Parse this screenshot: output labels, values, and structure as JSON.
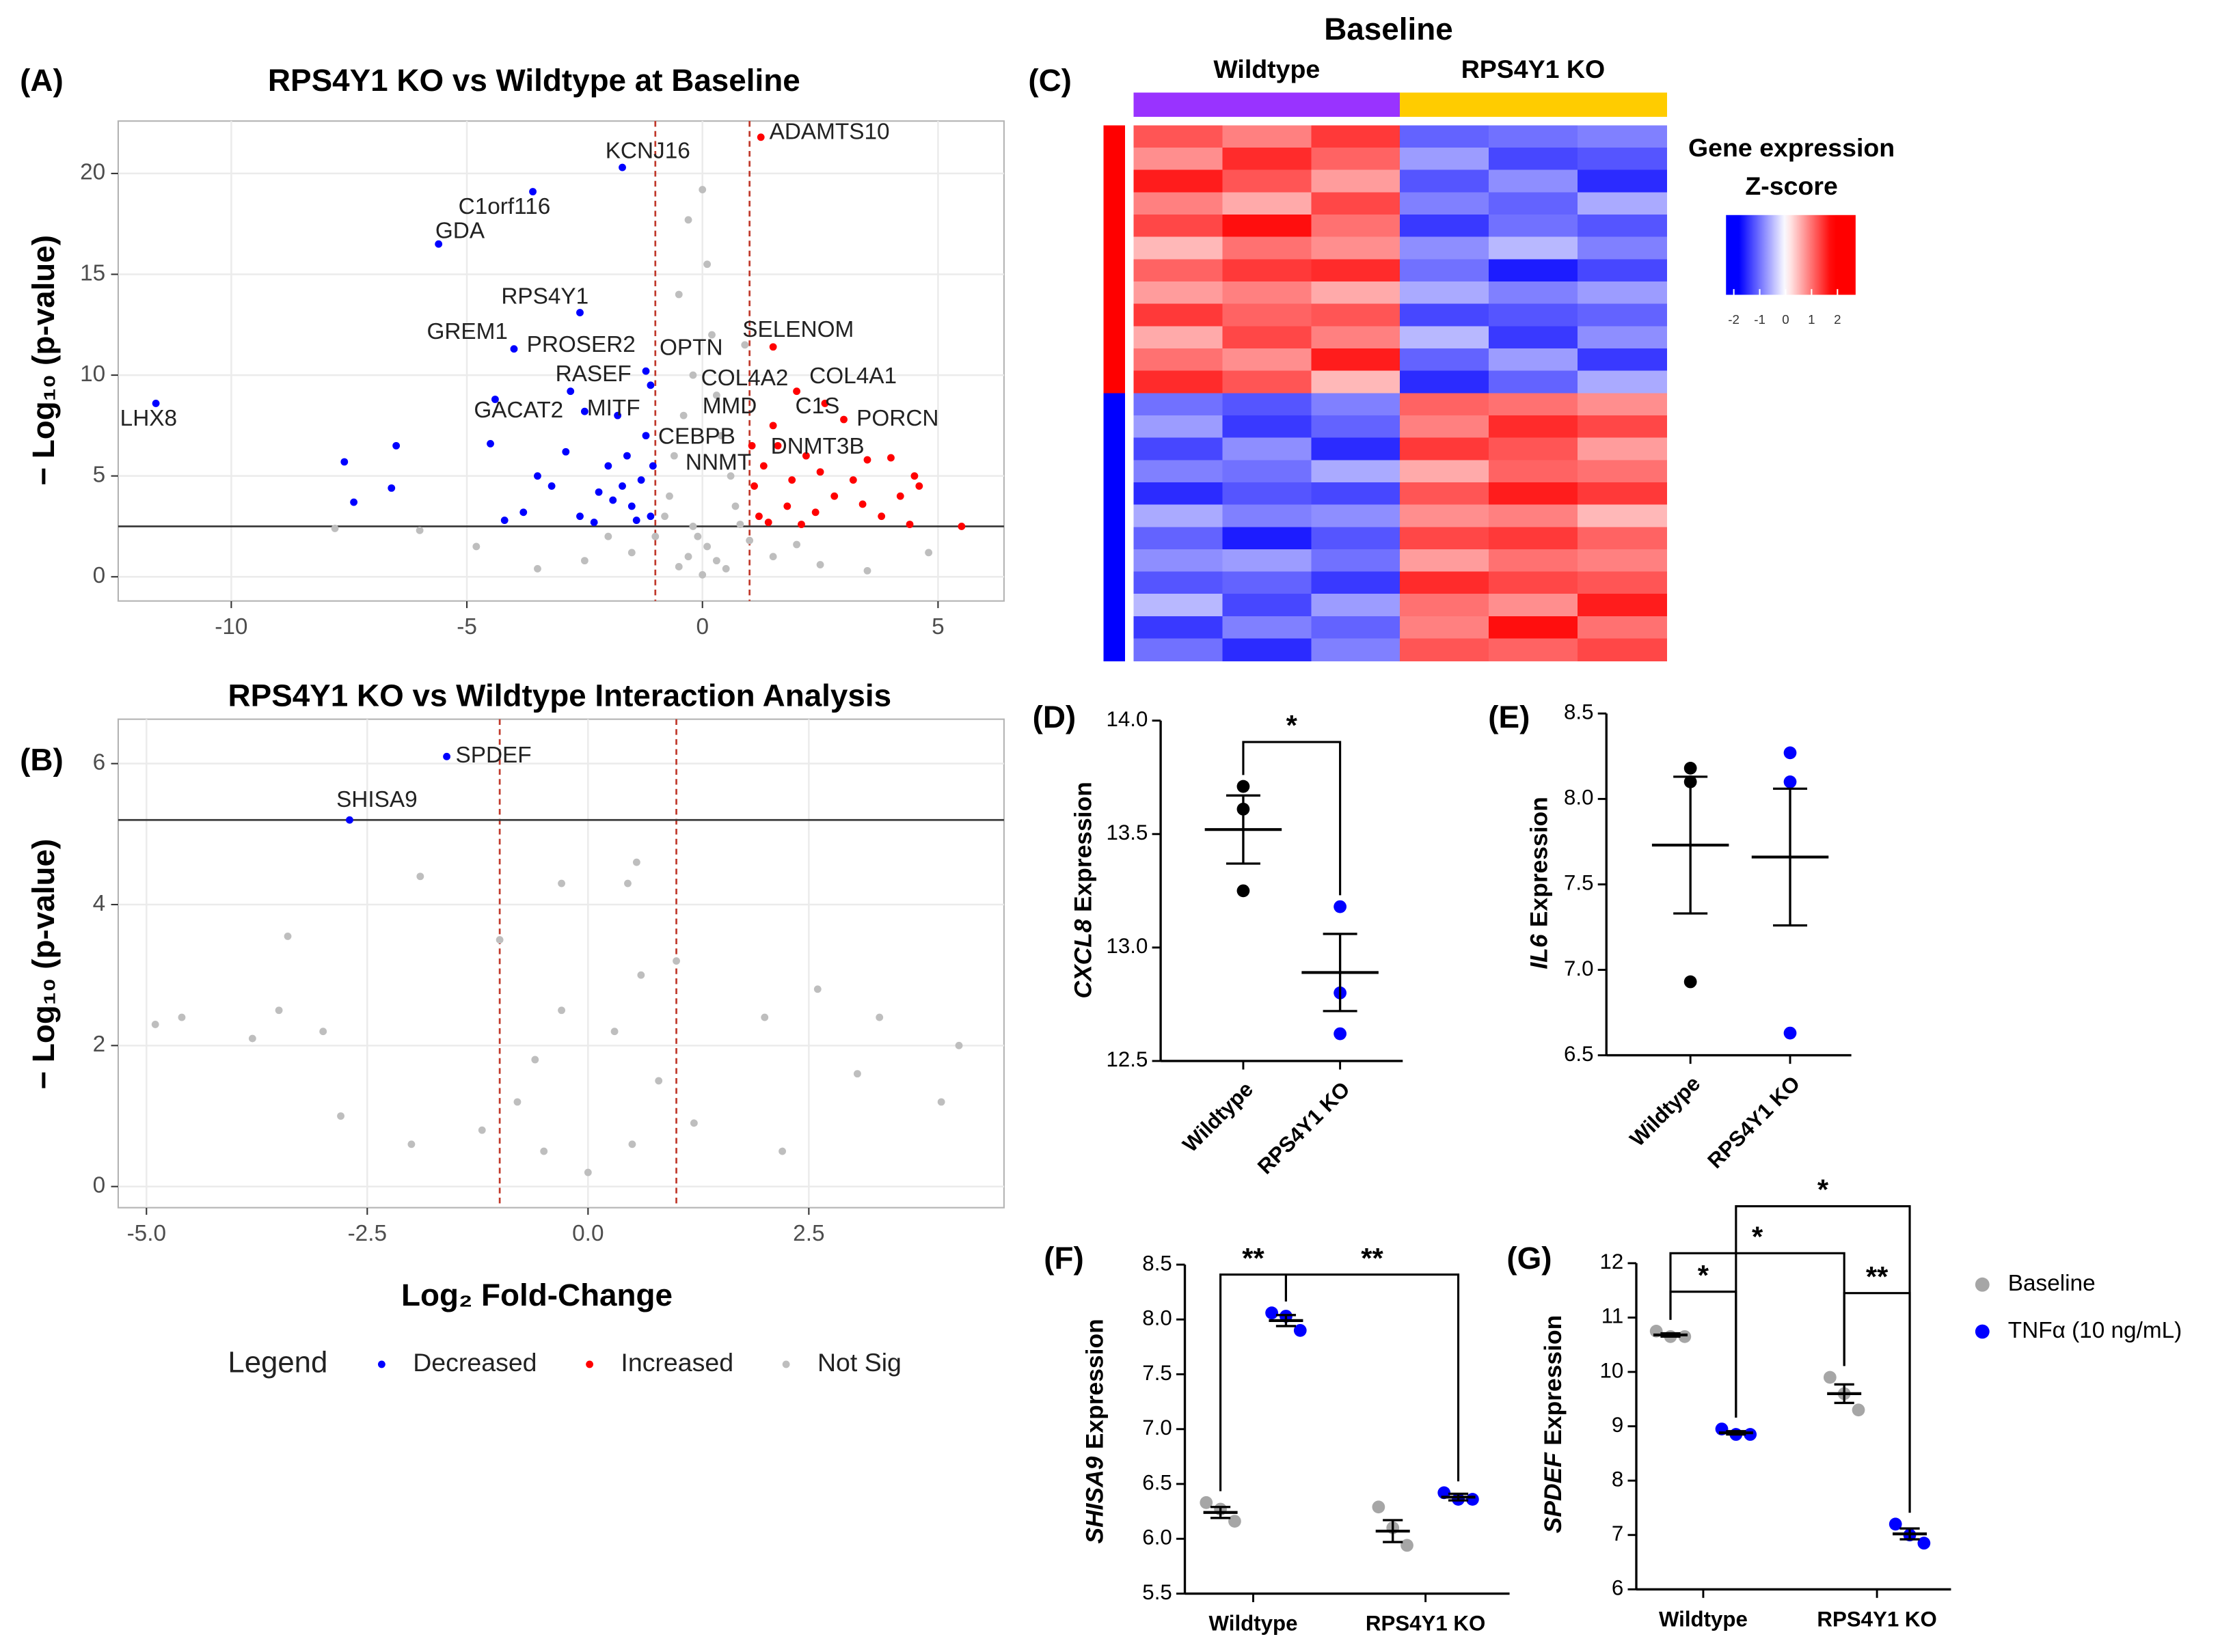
{
  "chart_data": [
    {
      "type": "scatter",
      "panel": "(A)",
      "title": "RPS4Y1 KO vs Wildtype at Baseline",
      "y_label": "− Log₁₀ (p-value)",
      "xlim": [
        -12.4,
        6.4
      ],
      "ylim": [
        -1.2,
        22.6
      ],
      "xticks": [
        -10,
        -5,
        0,
        5
      ],
      "yticks": [
        0,
        5,
        10,
        15,
        20
      ],
      "grid": true,
      "vlines": [
        -1,
        1
      ],
      "hline": 2.5,
      "series": [
        {
          "name": "Decreased",
          "color": "#0000ff",
          "x": [
            -1.7,
            -3.6,
            -5.6,
            -2.6,
            -4.0,
            -11.6,
            -7.6,
            -7.4,
            -6.5,
            -6.6,
            -4.4,
            -4.5,
            -2.8,
            -2.5,
            -1.8,
            -1.2,
            -1.1,
            -3.2,
            -3.8,
            -2.2,
            -2.0,
            -1.6,
            -1.3,
            -1.5,
            -2.6,
            -1.1,
            -3.5,
            -2.9,
            -1.9,
            -1.2,
            -1.4,
            -2.3,
            -4.2,
            -1.05,
            -1.7
          ],
          "y": [
            20.3,
            19.1,
            16.5,
            13.1,
            11.3,
            8.6,
            5.7,
            3.7,
            6.5,
            4.4,
            8.8,
            6.6,
            9.2,
            8.2,
            8.0,
            10.2,
            9.5,
            4.5,
            3.2,
            4.2,
            5.5,
            6.0,
            4.8,
            3.5,
            3.0,
            3.0,
            5.0,
            6.2,
            3.8,
            7.0,
            2.8,
            2.7,
            2.8,
            5.5,
            4.5
          ]
        },
        {
          "name": "Increased",
          "color": "#ff0000",
          "x": [
            1.24,
            1.5,
            2.0,
            2.6,
            3.0,
            1.6,
            2.2,
            3.5,
            4.0,
            4.5,
            4.6,
            5.5,
            3.2,
            2.8,
            1.3,
            1.1,
            1.8,
            2.4,
            3.8,
            4.2,
            1.2,
            1.5,
            2.5,
            1.9,
            3.4,
            1.05,
            1.4,
            2.1,
            4.4
          ],
          "y": [
            21.8,
            11.4,
            9.2,
            8.6,
            7.8,
            6.5,
            6.0,
            5.8,
            5.9,
            5.0,
            4.5,
            2.5,
            4.8,
            4.0,
            5.5,
            4.5,
            3.5,
            3.2,
            3.0,
            4.0,
            3.0,
            7.5,
            5.2,
            4.8,
            3.6,
            6.5,
            2.7,
            2.6,
            2.6
          ]
        },
        {
          "name": "Not Sig",
          "color": "#bebebe",
          "x": [
            0,
            -0.3,
            0.1,
            -0.5,
            0.2,
            -0.2,
            0.3,
            -0.4,
            0.4,
            -0.6,
            0.6,
            -0.7,
            0.7,
            -0.8,
            0.8,
            -0.1,
            0.1,
            -0.3,
            0.3,
            -0.5,
            0.5,
            0,
            -1.5,
            1.5,
            -2.5,
            2.5,
            -3.5,
            3.5,
            -6.0,
            -7.8,
            -4.8,
            4.8,
            -1.0,
            1.0,
            -2.0,
            2.0,
            0.9,
            -0.2
          ],
          "y": [
            19.2,
            17.7,
            15.5,
            14.0,
            12.0,
            10.0,
            9.0,
            8.0,
            7.0,
            6.0,
            5.0,
            4.0,
            3.5,
            3.0,
            2.6,
            2.0,
            1.5,
            1.0,
            0.8,
            0.5,
            0.4,
            0.1,
            1.2,
            1.0,
            0.8,
            0.6,
            0.4,
            0.3,
            2.3,
            2.4,
            1.5,
            1.2,
            2.0,
            1.8,
            2.0,
            1.6,
            11.5,
            2.5
          ]
        }
      ],
      "annotations": [
        {
          "text": "KCNJ16",
          "x": -2.06,
          "y": 21.06
        },
        {
          "text": "ADAMTS10",
          "x": 1.42,
          "y": 22.0
        },
        {
          "text": "C1orf116",
          "x": -5.18,
          "y": 18.3
        },
        {
          "text": "GDA",
          "x": -5.67,
          "y": 17.1
        },
        {
          "text": "RPS4Y1",
          "x": -4.27,
          "y": 13.85
        },
        {
          "text": "GREM1",
          "x": -5.85,
          "y": 12.1
        },
        {
          "text": "PROSER2",
          "x": -3.73,
          "y": 11.45
        },
        {
          "text": "OPTN",
          "x": -0.91,
          "y": 11.3
        },
        {
          "text": "SELENOM",
          "x": 0.85,
          "y": 12.2
        },
        {
          "text": "RASEF",
          "x": -3.12,
          "y": 10.0
        },
        {
          "text": "COL4A2",
          "x": -0.03,
          "y": 9.8
        },
        {
          "text": "COL4A1",
          "x": 2.27,
          "y": 9.9
        },
        {
          "text": "MMD",
          "x": 0.0,
          "y": 8.4
        },
        {
          "text": "C1S",
          "x": 1.97,
          "y": 8.4
        },
        {
          "text": "PORCN",
          "x": 3.27,
          "y": 7.8
        },
        {
          "text": "LHX8",
          "x": -12.36,
          "y": 7.8
        },
        {
          "text": "GACAT2",
          "x": -4.85,
          "y": 8.2
        },
        {
          "text": "MITF",
          "x": -2.45,
          "y": 8.3
        },
        {
          "text": "CEBPB",
          "x": -0.94,
          "y": 6.9
        },
        {
          "text": "DNMT3B",
          "x": 1.45,
          "y": 6.4
        },
        {
          "text": "NNMT",
          "x": -0.36,
          "y": 5.6
        }
      ]
    },
    {
      "type": "scatter",
      "panel": "(B)",
      "title": "RPS4Y1 KO vs Wildtype Interaction Analysis",
      "y_label": "− Log₁₀ (p-value)",
      "x_label": "Log₂ Fold-Change",
      "xlim": [
        -5.32,
        4.71
      ],
      "ylim": [
        -0.3,
        6.63
      ],
      "xticks": [
        {
          "value": -5,
          "label": "-5.0"
        },
        -2.5,
        {
          "value": 0,
          "label": "0.0"
        },
        2.5
      ],
      "yticks": [
        0,
        2,
        4,
        6
      ],
      "grid": true,
      "vlines": [
        -1,
        1
      ],
      "hline": 5.2,
      "legend_title": "Legend",
      "series": [
        {
          "name": "Decreased",
          "color": "#0000ff",
          "x": [
            -1.6,
            -2.7
          ],
          "y": [
            6.1,
            5.2
          ]
        },
        {
          "name": "Increased",
          "color": "#ff0000",
          "x": [],
          "y": []
        },
        {
          "name": "Not Sig",
          "color": "#bebebe",
          "x": [
            -4.9,
            -4.6,
            -3.4,
            -3.5,
            -1.9,
            -0.3,
            0.55,
            0.45,
            -3.0,
            2.6,
            2.0,
            3.05,
            4.2,
            4.0,
            -2.8,
            0,
            -0.5,
            0.5,
            -0.8,
            0.8,
            -0.3,
            0.3,
            -0.6,
            0.6,
            -1.2,
            1.2,
            -2.0,
            2.2,
            -1.0,
            1.0,
            -3.8,
            3.3
          ],
          "y": [
            2.3,
            2.4,
            3.55,
            2.5,
            4.4,
            4.3,
            4.6,
            4.3,
            2.2,
            2.8,
            2.4,
            1.6,
            2.0,
            1.2,
            1.0,
            0.2,
            0.5,
            0.6,
            1.2,
            1.5,
            2.5,
            2.2,
            1.8,
            3.0,
            0.8,
            0.9,
            0.6,
            0.5,
            3.5,
            3.2,
            2.1,
            2.4
          ]
        }
      ],
      "annotations": [
        {
          "text": "SPDEF",
          "x": -1.5,
          "y": 6.1
        },
        {
          "text": "SHISA9",
          "x": -2.85,
          "y": 5.47
        }
      ]
    },
    {
      "type": "heatmap",
      "panel": "(C)",
      "title": "Baseline",
      "column_group_labels": [
        "Wildtype",
        "RPS4Y1 KO"
      ],
      "column_colors": [
        "#9933ff",
        "#9933ff",
        "#9933ff",
        "#ffcc00",
        "#ffcc00",
        "#ffcc00"
      ],
      "row_colors": [
        "#ff0000",
        "#ff0000",
        "#ff0000",
        "#ff0000",
        "#ff0000",
        "#ff0000",
        "#ff0000",
        "#ff0000",
        "#ff0000",
        "#ff0000",
        "#ff0000",
        "#ff0000",
        "#0000ff",
        "#0000ff",
        "#0000ff",
        "#0000ff",
        "#0000ff",
        "#0000ff",
        "#0000ff",
        "#0000ff",
        "#0000ff",
        "#0000ff",
        "#0000ff",
        "#0000ff"
      ],
      "legend_title": [
        "Gene expression",
        "Z-score"
      ],
      "zlim": [
        -2.3,
        2.7
      ],
      "zticks": [
        -2,
        -1,
        0,
        1,
        2
      ],
      "colors": {
        "low": "#0000ff",
        "mid": "#ffffff",
        "high": "#ff0000"
      },
      "values": [
        [
          1.2,
          0.9,
          1.4,
          -1.1,
          -1.0,
          -0.9
        ],
        [
          0.8,
          1.5,
          1.1,
          -0.7,
          -1.3,
          -1.2
        ],
        [
          1.6,
          1.2,
          0.7,
          -1.2,
          -0.8,
          -1.5
        ],
        [
          0.9,
          0.6,
          1.3,
          -0.9,
          -1.1,
          -0.6
        ],
        [
          1.3,
          1.7,
          1.0,
          -1.4,
          -1.0,
          -1.2
        ],
        [
          0.5,
          1.0,
          0.8,
          -0.8,
          -0.5,
          -0.9
        ],
        [
          1.1,
          1.4,
          1.5,
          -1.0,
          -1.6,
          -1.3
        ],
        [
          0.7,
          0.9,
          0.6,
          -0.6,
          -0.9,
          -0.7
        ],
        [
          1.4,
          1.1,
          1.2,
          -1.3,
          -1.2,
          -1.1
        ],
        [
          0.6,
          1.3,
          0.9,
          -0.5,
          -1.4,
          -0.8
        ],
        [
          1.0,
          0.8,
          1.6,
          -1.1,
          -0.7,
          -1.4
        ],
        [
          1.5,
          1.2,
          0.5,
          -1.5,
          -1.1,
          -0.6
        ],
        [
          -1.0,
          -1.2,
          -0.9,
          1.1,
          1.0,
          0.8
        ],
        [
          -0.7,
          -1.4,
          -1.1,
          0.9,
          1.5,
          1.3
        ],
        [
          -1.3,
          -0.8,
          -1.5,
          1.4,
          1.2,
          0.7
        ],
        [
          -0.9,
          -1.0,
          -0.6,
          0.6,
          1.1,
          1.0
        ],
        [
          -1.5,
          -1.2,
          -1.3,
          1.2,
          1.6,
          1.4
        ],
        [
          -0.6,
          -0.9,
          -0.8,
          0.8,
          0.9,
          0.5
        ],
        [
          -1.1,
          -1.6,
          -1.2,
          1.3,
          1.4,
          1.1
        ],
        [
          -0.8,
          -0.7,
          -1.0,
          0.7,
          1.0,
          0.9
        ],
        [
          -1.2,
          -1.1,
          -1.4,
          1.5,
          1.3,
          1.2
        ],
        [
          -0.5,
          -1.3,
          -0.7,
          1.0,
          0.8,
          1.6
        ],
        [
          -1.4,
          -0.9,
          -1.1,
          0.9,
          1.7,
          1.0
        ],
        [
          -1.0,
          -1.5,
          -0.9,
          1.2,
          1.1,
          1.3
        ]
      ]
    },
    {
      "type": "dot",
      "panel": "(D)",
      "y_label_italic": "CXCL8",
      "y_label": "Expression",
      "categories": [
        "Wildtype",
        "RPS4Y1 KO"
      ],
      "ylim": [
        12.5,
        14.0
      ],
      "yticks": [
        12.5,
        {
          "value": 13,
          "label": "13.0"
        },
        13.5,
        {
          "value": 14,
          "label": "14.0"
        }
      ],
      "series": [
        {
          "colors": [
            "#000000",
            "#0000ff"
          ],
          "values": [
            [
              13.71,
              13.61,
              13.25
            ],
            [
              13.18,
              12.8,
              12.62
            ]
          ],
          "means": [
            13.52,
            12.89
          ],
          "sems": [
            0.15,
            0.17
          ]
        }
      ],
      "brackets": [
        {
          "label": "*",
          "from": [
            0,
            0
          ],
          "to": [
            1,
            0
          ]
        }
      ]
    },
    {
      "type": "dot",
      "panel": "(E)",
      "y_label_italic": "IL6",
      "y_label": "Expression",
      "categories": [
        "Wildtype",
        "RPS4Y1 KO"
      ],
      "ylim": [
        6.5,
        8.5
      ],
      "yticks": [
        6.5,
        {
          "value": 7,
          "label": "7.0"
        },
        7.5,
        {
          "value": 8,
          "label": "8.0"
        },
        8.5
      ],
      "series": [
        {
          "colors": [
            "#000000",
            "#0000ff"
          ],
          "values": [
            [
              8.18,
              8.1,
              6.93
            ],
            [
              8.27,
              8.1,
              6.63
            ]
          ],
          "means": [
            7.73,
            7.66
          ],
          "sems": [
            0.4,
            0.4
          ]
        }
      ]
    },
    {
      "type": "dot",
      "panel": "(F)",
      "y_label_italic": "SHISA9",
      "y_label": "Expression",
      "categories": [
        "Wildtype",
        "RPS4Y1 KO"
      ],
      "ylim": [
        5.5,
        8.5
      ],
      "yticks": [
        5.5,
        {
          "value": 6,
          "label": "6.0"
        },
        6.5,
        {
          "value": 7,
          "label": "7.0"
        },
        7.5,
        {
          "value": 8,
          "label": "8.0"
        },
        8.5
      ],
      "series": [
        {
          "name": "Baseline",
          "color": "#a6a6a6",
          "values": [
            [
              6.33,
              6.27,
              6.16
            ],
            [
              6.29,
              6.1,
              5.94
            ]
          ],
          "means": [
            6.24,
            6.07
          ],
          "sems": [
            0.05,
            0.1
          ]
        },
        {
          "name": "TNFα (10 ng/mL)",
          "color": "#0000ff",
          "values": [
            [
              8.06,
              8.03,
              7.9
            ],
            [
              6.42,
              6.36,
              6.36
            ]
          ],
          "means": [
            7.99,
            6.38
          ],
          "sems": [
            0.05,
            0.03
          ]
        }
      ],
      "brackets": [
        {
          "label": "**",
          "from": [
            0,
            0
          ],
          "to": [
            0,
            1
          ]
        },
        {
          "label": "**",
          "from": [
            0,
            1
          ],
          "to": [
            1,
            1
          ]
        }
      ]
    },
    {
      "type": "dot",
      "panel": "(G)",
      "y_label_italic": "SPDEF",
      "y_label": "Expression",
      "categories": [
        "Wildtype",
        "RPS4Y1 KO"
      ],
      "ylim": [
        6,
        12
      ],
      "yticks": [
        6,
        7,
        8,
        9,
        10,
        11,
        12
      ],
      "legend": true,
      "series": [
        {
          "name": "Baseline",
          "color": "#a6a6a6",
          "values": [
            [
              10.75,
              10.65,
              10.65
            ],
            [
              9.9,
              9.6,
              9.3
            ]
          ],
          "means": [
            10.68,
            9.6
          ],
          "sems": [
            0.03,
            0.17
          ]
        },
        {
          "name": "TNFα (10 ng/mL)",
          "color": "#0000ff",
          "values": [
            [
              8.95,
              8.85,
              8.85
            ],
            [
              7.2,
              7.0,
              6.85
            ]
          ],
          "means": [
            8.88,
            7.02
          ],
          "sems": [
            0.03,
            0.1
          ]
        }
      ],
      "brackets": [
        {
          "label": "*",
          "from": [
            0,
            0
          ],
          "to": [
            0,
            1
          ]
        },
        {
          "label": "*",
          "from": [
            0,
            0
          ],
          "to": [
            1,
            0
          ]
        },
        {
          "label": "**",
          "from": [
            1,
            0
          ],
          "to": [
            1,
            1
          ]
        },
        {
          "label": "*",
          "from": [
            0,
            1
          ],
          "to": [
            1,
            1
          ]
        }
      ]
    }
  ]
}
